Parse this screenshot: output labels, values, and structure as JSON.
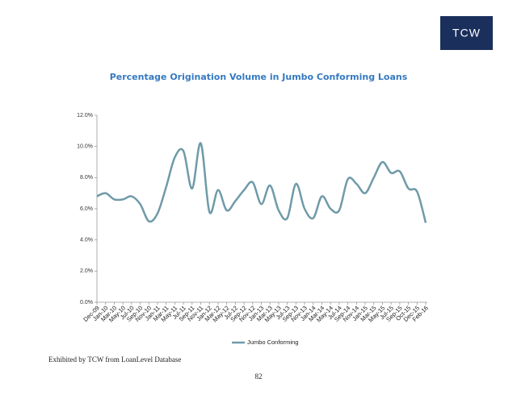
{
  "logo": "TCW",
  "chart_data": {
    "type": "line",
    "title": "Percentage Origination Volume in Jumbo Conforming Loans",
    "categories": [
      "Dec-09",
      "Jan-10",
      "Mar-10",
      "May-10",
      "Jul-10",
      "Sep-10",
      "Nov-10",
      "Jan-11",
      "Mar-11",
      "May-11",
      "Jul-11",
      "Sep-11",
      "Nov-11",
      "Jan-12",
      "Mar-12",
      "May-12",
      "Jul-12",
      "Sep-12",
      "Nov-12",
      "Jan-13",
      "Mar-13",
      "May-13",
      "Jul-13",
      "Sep-13",
      "Nov-13",
      "Jan-14",
      "Mar-14",
      "May-14",
      "Jul-14",
      "Sep-14",
      "Nov-14",
      "Jan-15",
      "Mar-15",
      "May-15",
      "Jul-15",
      "Sep-15",
      "Oct-15",
      "Dec-15",
      "Feb-16"
    ],
    "series": [
      {
        "name": "Jumbo Conforming",
        "color": "#6f9aa8",
        "values": [
          6.8,
          7.0,
          6.6,
          6.6,
          6.8,
          6.3,
          5.2,
          5.7,
          7.4,
          9.3,
          9.7,
          7.3,
          10.2,
          5.8,
          7.2,
          5.9,
          6.5,
          7.2,
          7.7,
          6.3,
          7.5,
          5.9,
          5.4,
          7.6,
          6.0,
          5.4,
          6.8,
          6.0,
          5.9,
          7.9,
          7.6,
          7.0,
          8.0,
          9.0,
          8.3,
          8.4,
          7.3,
          7.1,
          5.1
        ]
      }
    ],
    "ylim": [
      0,
      12
    ],
    "yticks": [
      {
        "value": 0,
        "label": "0.0%"
      },
      {
        "value": 2,
        "label": "2.0%"
      },
      {
        "value": 4,
        "label": "4.0%"
      },
      {
        "value": 6,
        "label": "6.0%"
      },
      {
        "value": 8,
        "label": "8.0%"
      },
      {
        "value": 10,
        "label": "10.0%"
      },
      {
        "value": 12,
        "label": "12.0%"
      }
    ],
    "grid": false,
    "legend": "bottom"
  },
  "footer": "Exhibited by TCW from LoanLevel Database",
  "page_number": "82"
}
